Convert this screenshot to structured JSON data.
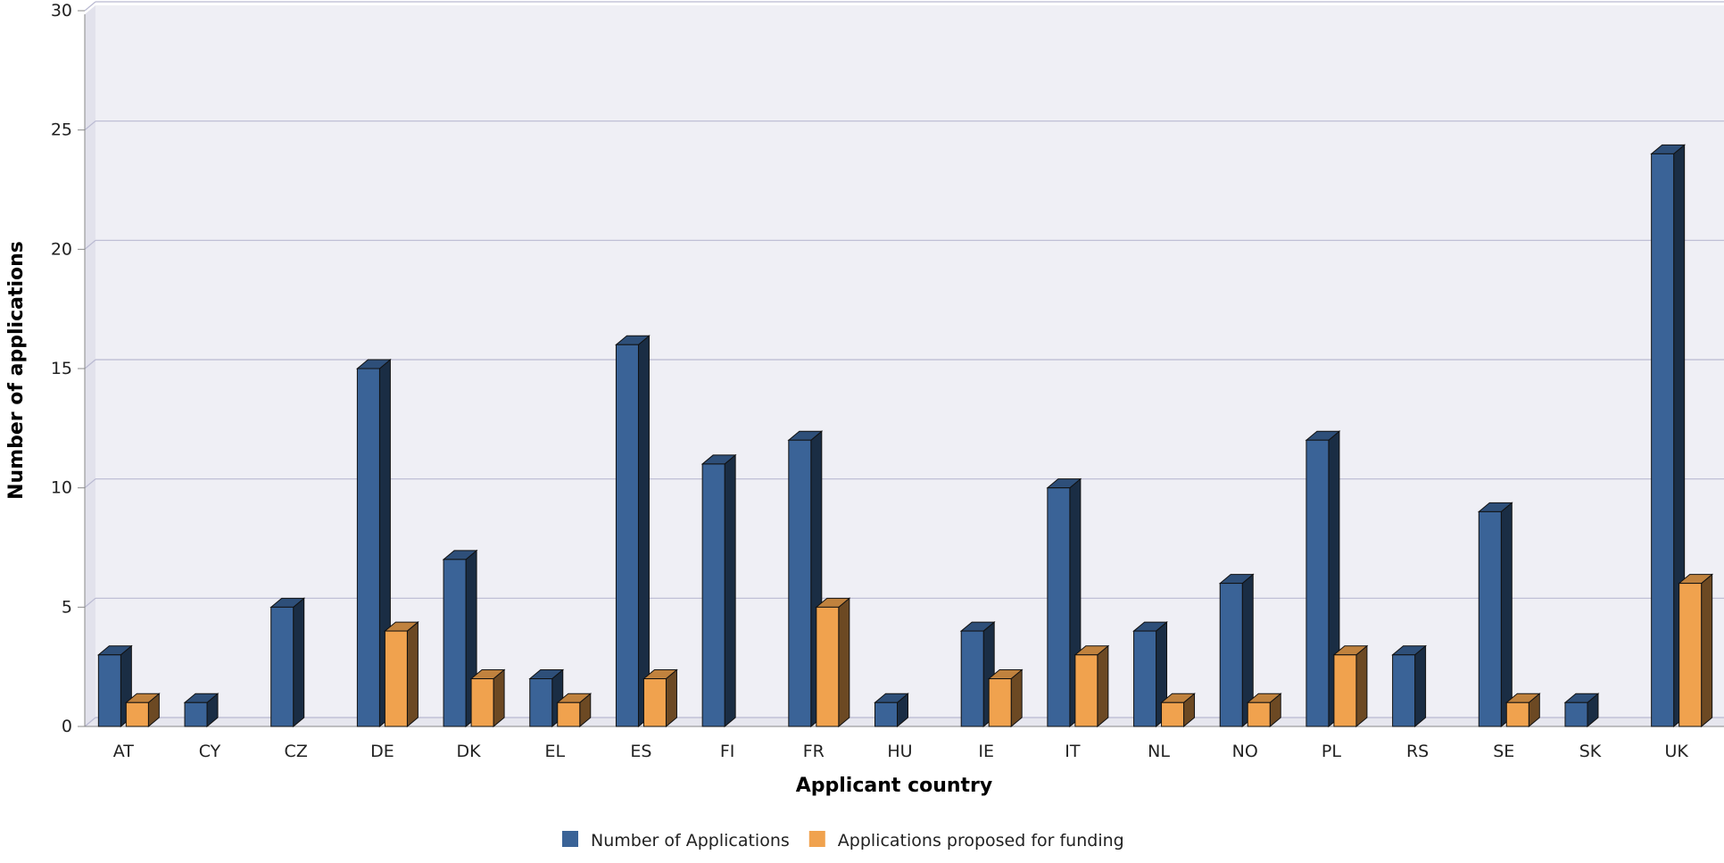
{
  "chart_data": {
    "type": "bar",
    "title": "",
    "xlabel": "Applicant country",
    "ylabel": "Number of applications",
    "ylim": [
      0,
      30
    ],
    "yticks": [
      0,
      5,
      10,
      15,
      20,
      25,
      30
    ],
    "grid": true,
    "legend_position": "bottom",
    "categories": [
      "AT",
      "CY",
      "CZ",
      "DE",
      "DK",
      "EL",
      "ES",
      "FI",
      "FR",
      "HU",
      "IE",
      "IT",
      "NL",
      "NO",
      "PL",
      "RS",
      "SE",
      "SK",
      "UK"
    ],
    "series": [
      {
        "name": "Number of Applications",
        "color": "#3a6397",
        "values": [
          3,
          1,
          5,
          15,
          7,
          2,
          16,
          11,
          12,
          1,
          4,
          10,
          4,
          6,
          12,
          3,
          9,
          1,
          24
        ]
      },
      {
        "name": "Applications proposed for funding",
        "color": "#f0a24e",
        "values": [
          1,
          0,
          0,
          4,
          2,
          1,
          2,
          0,
          5,
          0,
          2,
          3,
          1,
          1,
          3,
          0,
          1,
          0,
          6
        ]
      }
    ]
  }
}
